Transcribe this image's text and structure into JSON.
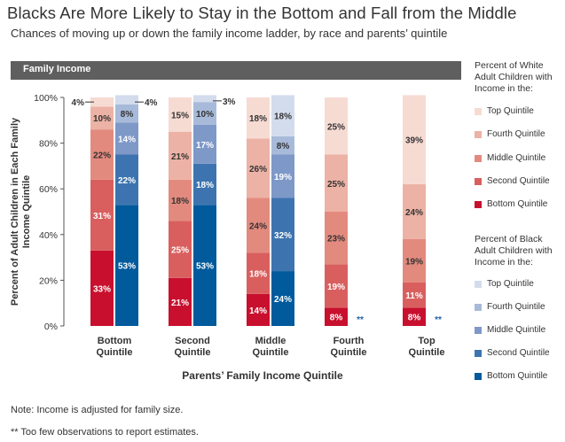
{
  "title": "Blacks Are More Likely to Stay in the Bottom and Fall from the Middle",
  "subtitle": "Chances of moving up or down the family income ladder, by race and parents’ quintile",
  "banner_label": "Family Income",
  "notes": [
    "Note: Income is adjusted for family size.",
    "** Too few observations to report estimates."
  ],
  "colors": {
    "white": [
      "#c8102e",
      "#d95f5f",
      "#e38a7e",
      "#ecb2a5",
      "#f6dbd3"
    ],
    "black": [
      "#005a9c",
      "#3d74b0",
      "#7e98c8",
      "#a8bad9",
      "#d3dcec"
    ]
  },
  "legend": {
    "white_title": [
      "Percent of White",
      "Adult Children with",
      "Income in the:"
    ],
    "black_title": [
      "Percent of Black",
      "Adult Children with",
      "Income in the:"
    ],
    "white_items": [
      "Top Quintile",
      "Fourth Quintile",
      "Middle Quintile",
      "Second Quintile",
      "Bottom Quintile"
    ],
    "black_items": [
      "Top Quintile",
      "Fourth Quintile",
      "Middle Quintile",
      "Second Quintile",
      "Bottom Quintile"
    ]
  },
  "chart_data": {
    "type": "bar",
    "stacked": true,
    "categories": [
      [
        "Bottom",
        "Quintile"
      ],
      [
        "Second",
        "Quintile"
      ],
      [
        "Middle",
        "Quintile"
      ],
      [
        "Fourth",
        "Quintile"
      ],
      [
        "Top",
        "Quintile"
      ]
    ],
    "xlabel": "Parents’ Family Income Quintile",
    "ylabel": [
      "Percent of  Adult Children in Each Family",
      "Income  Quintile"
    ],
    "yticks": [
      "0%",
      "20%",
      "40%",
      "60%",
      "80%",
      "100%"
    ],
    "ylim": [
      0,
      100
    ],
    "stack_order": [
      "Bottom Quintile",
      "Second Quintile",
      "Middle Quintile",
      "Fourth Quintile",
      "Top Quintile"
    ],
    "series": [
      {
        "name": "Percent of White Adult Children with Income in the:",
        "values": [
          [
            33,
            31,
            22,
            10,
            4
          ],
          [
            21,
            25,
            18,
            21,
            15
          ],
          [
            14,
            18,
            24,
            26,
            18
          ],
          [
            8,
            19,
            23,
            25,
            25
          ],
          [
            8,
            11,
            19,
            24,
            39
          ]
        ]
      },
      {
        "name": "Percent of Black Adult Children with Income in the:",
        "values": [
          [
            53,
            22,
            14,
            8,
            4
          ],
          [
            53,
            18,
            17,
            10,
            3
          ],
          [
            24,
            32,
            19,
            8,
            18
          ],
          null,
          null
        ]
      }
    ],
    "bar_labels": {
      "white": [
        [
          "33%",
          "31%",
          "22%",
          "10%",
          ""
        ],
        [
          "21%",
          "25%",
          "18%",
          "21%",
          "15%"
        ],
        [
          "14%",
          "18%",
          "24%",
          "26%",
          "18%"
        ],
        [
          "8%",
          "19%",
          "23%",
          "25%",
          "25%"
        ],
        [
          "8%",
          "11%",
          "19%",
          "24%",
          "39%"
        ]
      ],
      "black": [
        [
          "53%",
          "22%",
          "14%",
          "8%",
          ""
        ],
        [
          "53%",
          "18%",
          "17%",
          "10%",
          ""
        ],
        [
          "24%",
          "32%",
          "19%",
          "8%",
          "18%"
        ]
      ]
    },
    "callouts": [
      "4%",
      "4%",
      "3%"
    ],
    "missing_marker": "**"
  }
}
